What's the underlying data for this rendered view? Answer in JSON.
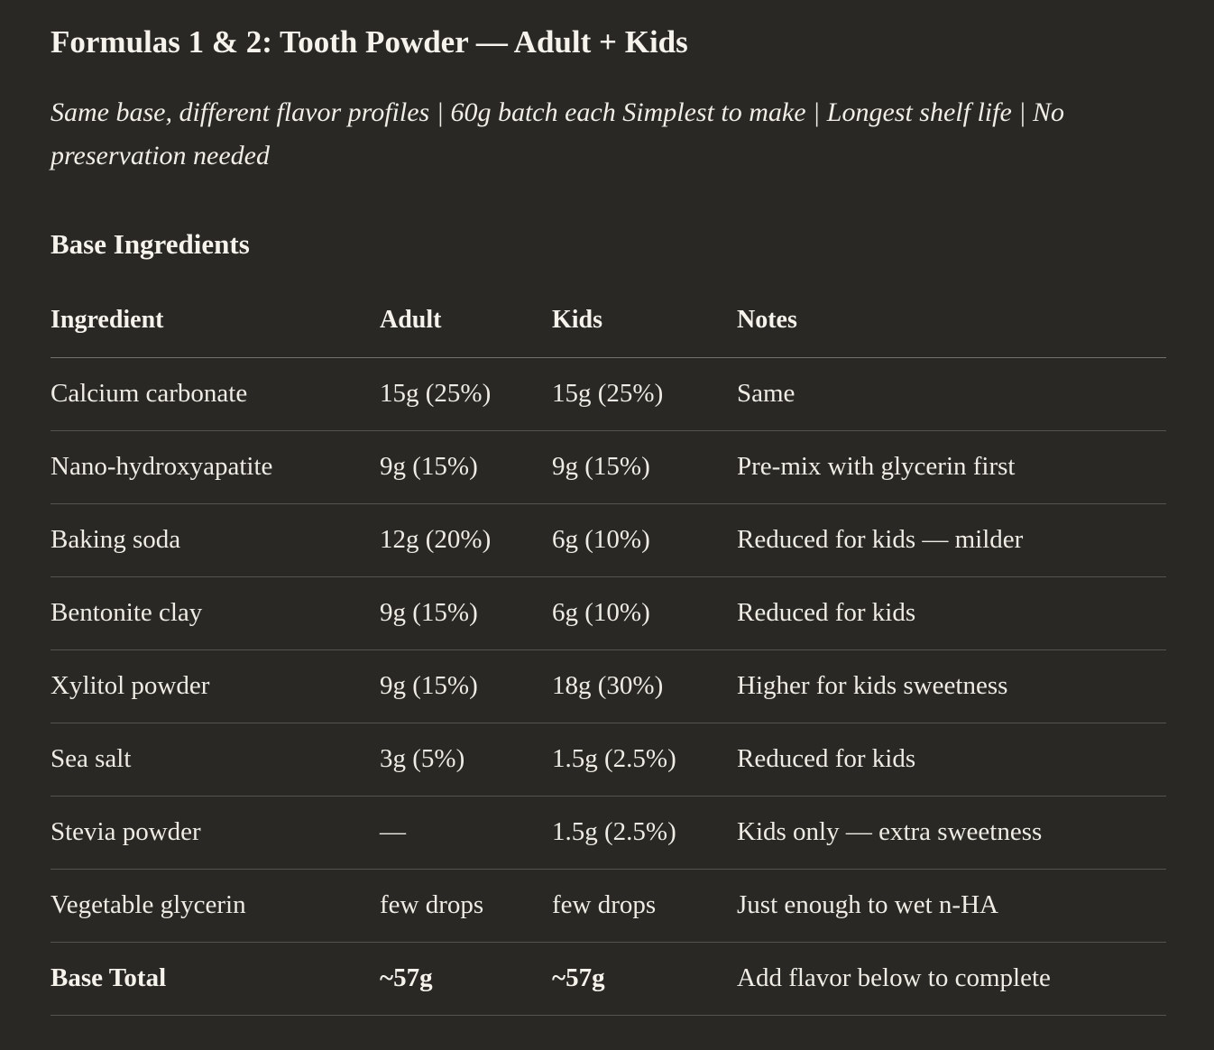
{
  "page": {
    "title": "Formulas 1 & 2: Tooth Powder — Adult + Kids",
    "subtitle": "Same base, different flavor profiles | 60g batch each Simplest to make | Longest shelf life | No preservation needed",
    "section_heading": "Base Ingredients"
  },
  "colors": {
    "background": "#292824",
    "text": "#f3f1e9",
    "header_divider": "#74726c",
    "row_divider": "#55534d"
  },
  "table": {
    "columns": [
      "Ingredient",
      "Adult",
      "Kids",
      "Notes"
    ],
    "rows": [
      {
        "ingredient": "Calcium carbonate",
        "adult": "15g (25%)",
        "kids": "15g (25%)",
        "notes": "Same",
        "bold": false
      },
      {
        "ingredient": "Nano-hydroxyapatite",
        "adult": "9g (15%)",
        "kids": "9g (15%)",
        "notes": "Pre-mix with glycerin first",
        "bold": false
      },
      {
        "ingredient": "Baking soda",
        "adult": "12g (20%)",
        "kids": "6g (10%)",
        "notes": "Reduced for kids — milder",
        "bold": false
      },
      {
        "ingredient": "Bentonite clay",
        "adult": "9g (15%)",
        "kids": "6g (10%)",
        "notes": "Reduced for kids",
        "bold": false
      },
      {
        "ingredient": "Xylitol powder",
        "adult": "9g (15%)",
        "kids": "18g (30%)",
        "notes": "Higher for kids sweetness",
        "bold": false
      },
      {
        "ingredient": "Sea salt",
        "adult": "3g (5%)",
        "kids": "1.5g (2.5%)",
        "notes": "Reduced for kids",
        "bold": false
      },
      {
        "ingredient": "Stevia powder",
        "adult": "—",
        "kids": "1.5g (2.5%)",
        "notes": "Kids only — extra sweetness",
        "bold": false
      },
      {
        "ingredient": "Vegetable glycerin",
        "adult": "few drops",
        "kids": "few drops",
        "notes": "Just enough to wet n-HA",
        "bold": false
      },
      {
        "ingredient": "Base Total",
        "adult": "~57g",
        "kids": "~57g",
        "notes": "Add flavor below to complete",
        "bold": true
      }
    ]
  }
}
